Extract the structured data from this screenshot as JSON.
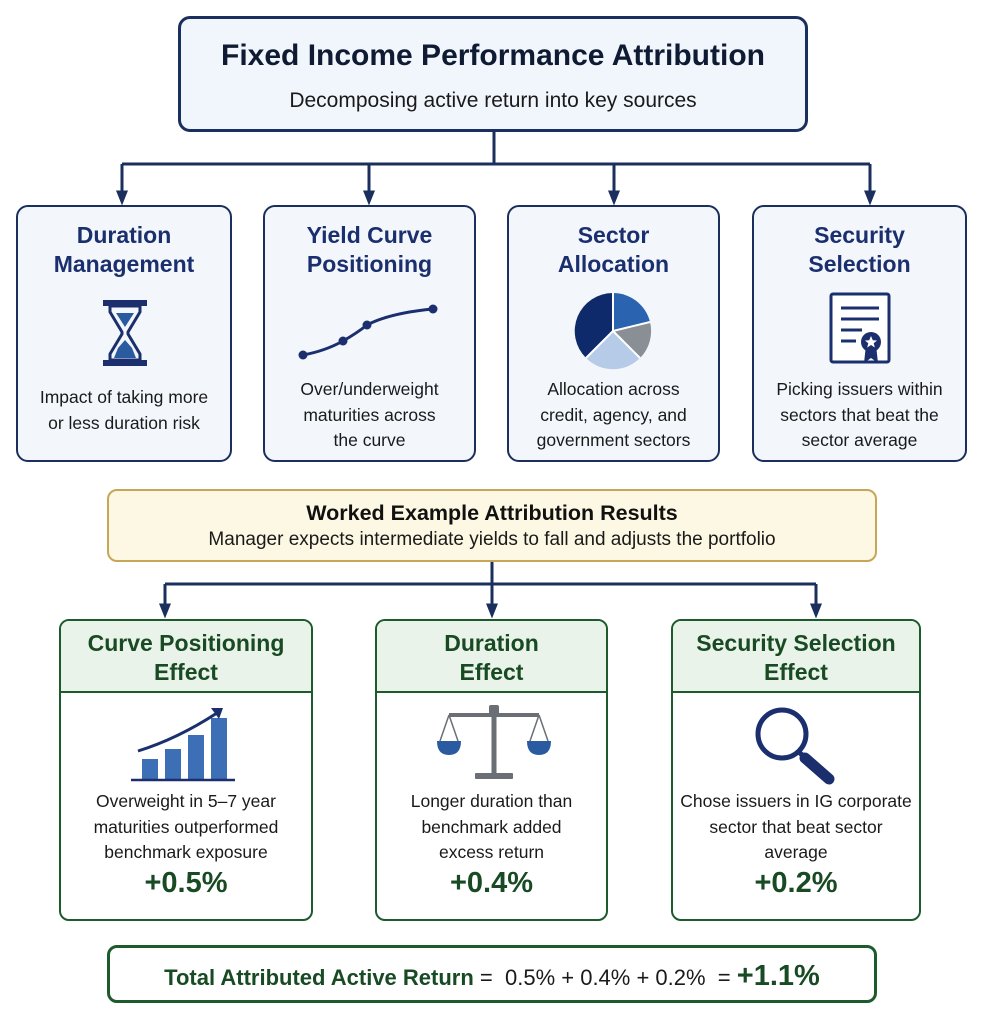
{
  "header": {
    "title": "Fixed Income Performance Attribution",
    "subtitle": "Decomposing active return into key sources"
  },
  "sources": [
    {
      "title_line1": "Duration",
      "title_line2": "Management",
      "desc": [
        "Impact of taking more",
        "or less duration risk"
      ],
      "icon": "hourglass-icon"
    },
    {
      "title_line1": "Yield Curve",
      "title_line2": "Positioning",
      "desc": [
        "Over/underweight",
        "maturities across",
        "the curve"
      ],
      "icon": "yield-curve-icon"
    },
    {
      "title_line1": "Sector",
      "title_line2": "Allocation",
      "desc": [
        "Allocation across",
        "credit, agency, and",
        "government sectors"
      ],
      "icon": "pie-chart-icon"
    },
    {
      "title_line1": "Security",
      "title_line2": "Selection",
      "desc": [
        "Picking issuers within",
        "sectors that beat the",
        "sector average"
      ],
      "icon": "certificate-icon"
    }
  ],
  "example": {
    "title": "Worked Example Attribution Results",
    "subtitle": "Manager expects intermediate yields to fall and adjusts the portfolio"
  },
  "effects": [
    {
      "title_line1": "Curve Positioning",
      "title_line2": "Effect",
      "desc": [
        "Overweight in 5–7 year",
        "maturities outperformed",
        "benchmark exposure"
      ],
      "value": "+0.5%",
      "icon": "rising-bar-chart-icon"
    },
    {
      "title_line1": "Duration",
      "title_line2": "Effect",
      "desc": [
        "Longer duration than",
        "benchmark added",
        "excess return"
      ],
      "value": "+0.4%",
      "icon": "balance-scale-icon"
    },
    {
      "title_line1": "Security Selection",
      "title_line2": "Effect",
      "desc": [
        "Chose issuers in IG corporate",
        "sector that beat sector",
        "average"
      ],
      "value": "+0.2%",
      "icon": "magnifier-icon"
    }
  ],
  "total": {
    "label": "Total Attributed Active Return",
    "equation": "=  0.5% + 0.4% + 0.2%  =",
    "result": "+1.1%"
  },
  "colors": {
    "navy": "#1b2f5e",
    "green": "#1d5b2c",
    "gold": "#c7a657"
  }
}
